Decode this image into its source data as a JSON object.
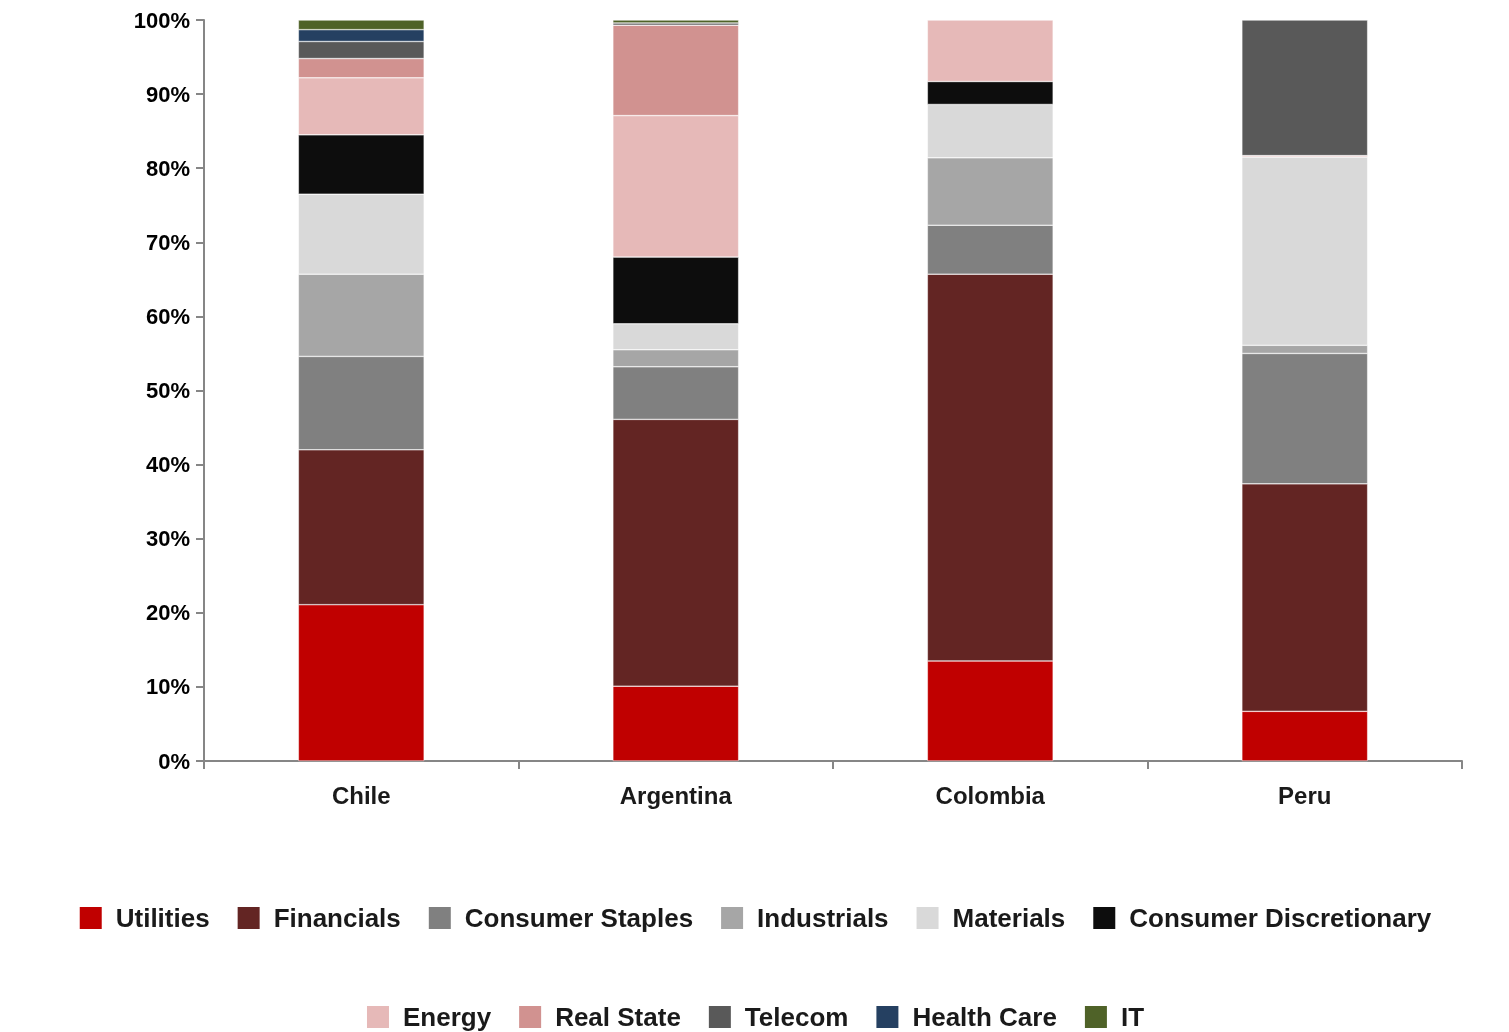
{
  "chart_data": {
    "type": "bar",
    "stacked": true,
    "categories": [
      "Chile",
      "Argentina",
      "Colombia",
      "Peru"
    ],
    "series": [
      {
        "name": "Utilities",
        "color": "#c00000",
        "values": [
          21.1,
          10.1,
          13.5,
          6.7
        ]
      },
      {
        "name": "Financials",
        "color": "#632523",
        "values": [
          20.9,
          36.0,
          52.2,
          30.7
        ]
      },
      {
        "name": "Consumer Staples",
        "color": "#808080",
        "values": [
          12.6,
          7.1,
          6.6,
          17.6
        ]
      },
      {
        "name": "Industrials",
        "color": "#a6a6a6",
        "values": [
          11.1,
          2.3,
          9.1,
          1.1
        ]
      },
      {
        "name": "Materials",
        "color": "#d9d9d9",
        "values": [
          10.8,
          3.5,
          7.2,
          25.4
        ]
      },
      {
        "name": "Consumer Discretionary",
        "color": "#0d0d0d",
        "values": [
          8.0,
          9.0,
          3.1,
          null
        ]
      },
      {
        "name": "Energy",
        "color": "#e6b9b8",
        "values": [
          7.7,
          19.1,
          8.3,
          0.2
        ]
      },
      {
        "name": "Real State",
        "color": "#d19290",
        "values": [
          2.6,
          12.2,
          null,
          null
        ]
      },
      {
        "name": "Telecom",
        "color": "#595959",
        "values": [
          2.3,
          0.3,
          null,
          18.3
        ]
      },
      {
        "name": "Health Care",
        "color": "#254061",
        "values": [
          1.6,
          null,
          null,
          null
        ]
      },
      {
        "name": "IT",
        "color": "#4f6228",
        "values": [
          1.3,
          0.4,
          null,
          null
        ]
      }
    ],
    "ylim": [
      0,
      100
    ],
    "yticks": [
      {
        "value": 0,
        "label": "0%"
      },
      {
        "value": 10,
        "label": "10%"
      },
      {
        "value": 20,
        "label": "20%"
      },
      {
        "value": 30,
        "label": "30%"
      },
      {
        "value": 40,
        "label": "40%"
      },
      {
        "value": 50,
        "label": "50%"
      },
      {
        "value": 60,
        "label": "60%"
      },
      {
        "value": 70,
        "label": "70%"
      },
      {
        "value": 80,
        "label": "80%"
      },
      {
        "value": 90,
        "label": "90%"
      },
      {
        "value": 100,
        "label": "100%"
      }
    ],
    "legend": "bottom"
  }
}
